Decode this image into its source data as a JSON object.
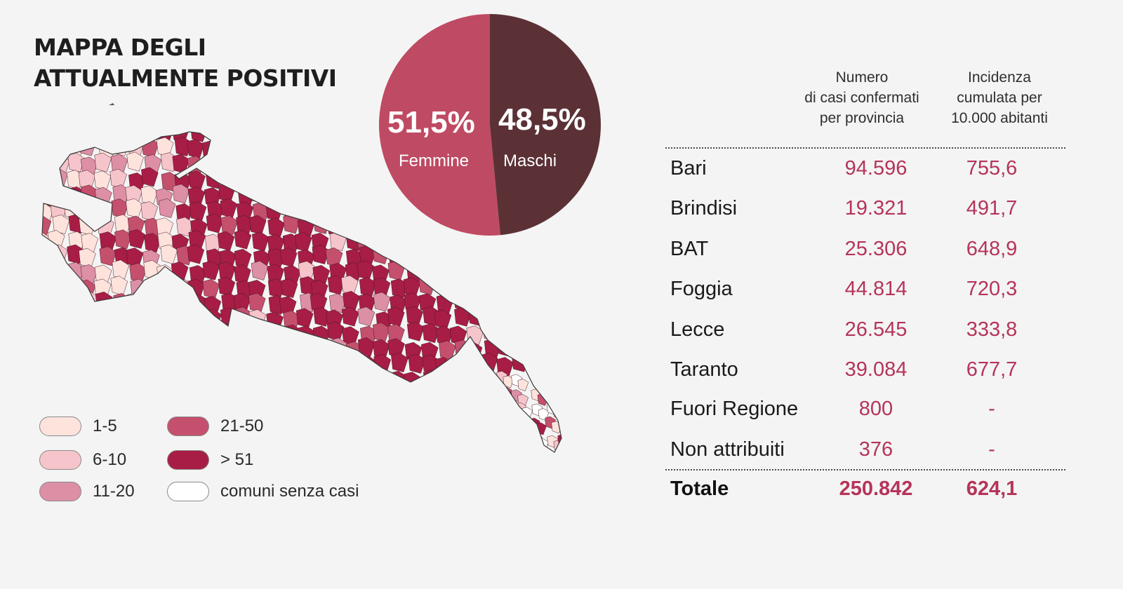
{
  "title": {
    "line1": "MAPPA DEGLI",
    "line2": "ATTUALMENTE POSITIVI"
  },
  "colors": {
    "class_1_5": "#fde3dc",
    "class_6_10": "#f5c5cb",
    "class_11_20": "#dc8fa5",
    "class_21_50": "#c4506d",
    "class_51_plus": "#a81d45",
    "senza_casi": "#ffffff",
    "female": "#bf4a63",
    "male": "#5b3136",
    "accent": "#b5345a"
  },
  "legend": [
    {
      "label": "1-5",
      "color_key": "class_1_5"
    },
    {
      "label": "6-10",
      "color_key": "class_6_10"
    },
    {
      "label": "11-20",
      "color_key": "class_11_20"
    },
    {
      "label": "21-50",
      "color_key": "class_21_50"
    },
    {
      "label": "> 51",
      "color_key": "class_51_plus"
    },
    {
      "label": "comuni senza casi",
      "color_key": "senza_casi"
    }
  ],
  "chart_data": {
    "type": "pie",
    "slices": [
      {
        "label": "Femmine",
        "value": 51.5,
        "display": "51,5%"
      },
      {
        "label": "Maschi",
        "value": 48.5,
        "display": "48,5%"
      }
    ]
  },
  "table": {
    "header_num": [
      "Numero",
      "di casi confermati",
      "per provincia"
    ],
    "header_inc": [
      "Incidenza",
      "cumulata per",
      "10.000 abitanti"
    ],
    "rows": [
      {
        "name": "Bari",
        "num": "94.596",
        "inc": "755,6"
      },
      {
        "name": "Brindisi",
        "num": "19.321",
        "inc": "491,7"
      },
      {
        "name": "BAT",
        "num": "25.306",
        "inc": "648,9"
      },
      {
        "name": "Foggia",
        "num": "44.814",
        "inc": "720,3"
      },
      {
        "name": "Lecce",
        "num": "26.545",
        "inc": "333,8"
      },
      {
        "name": "Taranto",
        "num": "39.084",
        "inc": "677,7"
      },
      {
        "name": "Fuori Regione",
        "num": "800",
        "inc": "-"
      },
      {
        "name": "Non attribuiti",
        "num": "376",
        "inc": "-"
      }
    ],
    "total": {
      "name": "Totale",
      "num": "250.842",
      "inc": "624,1"
    }
  }
}
